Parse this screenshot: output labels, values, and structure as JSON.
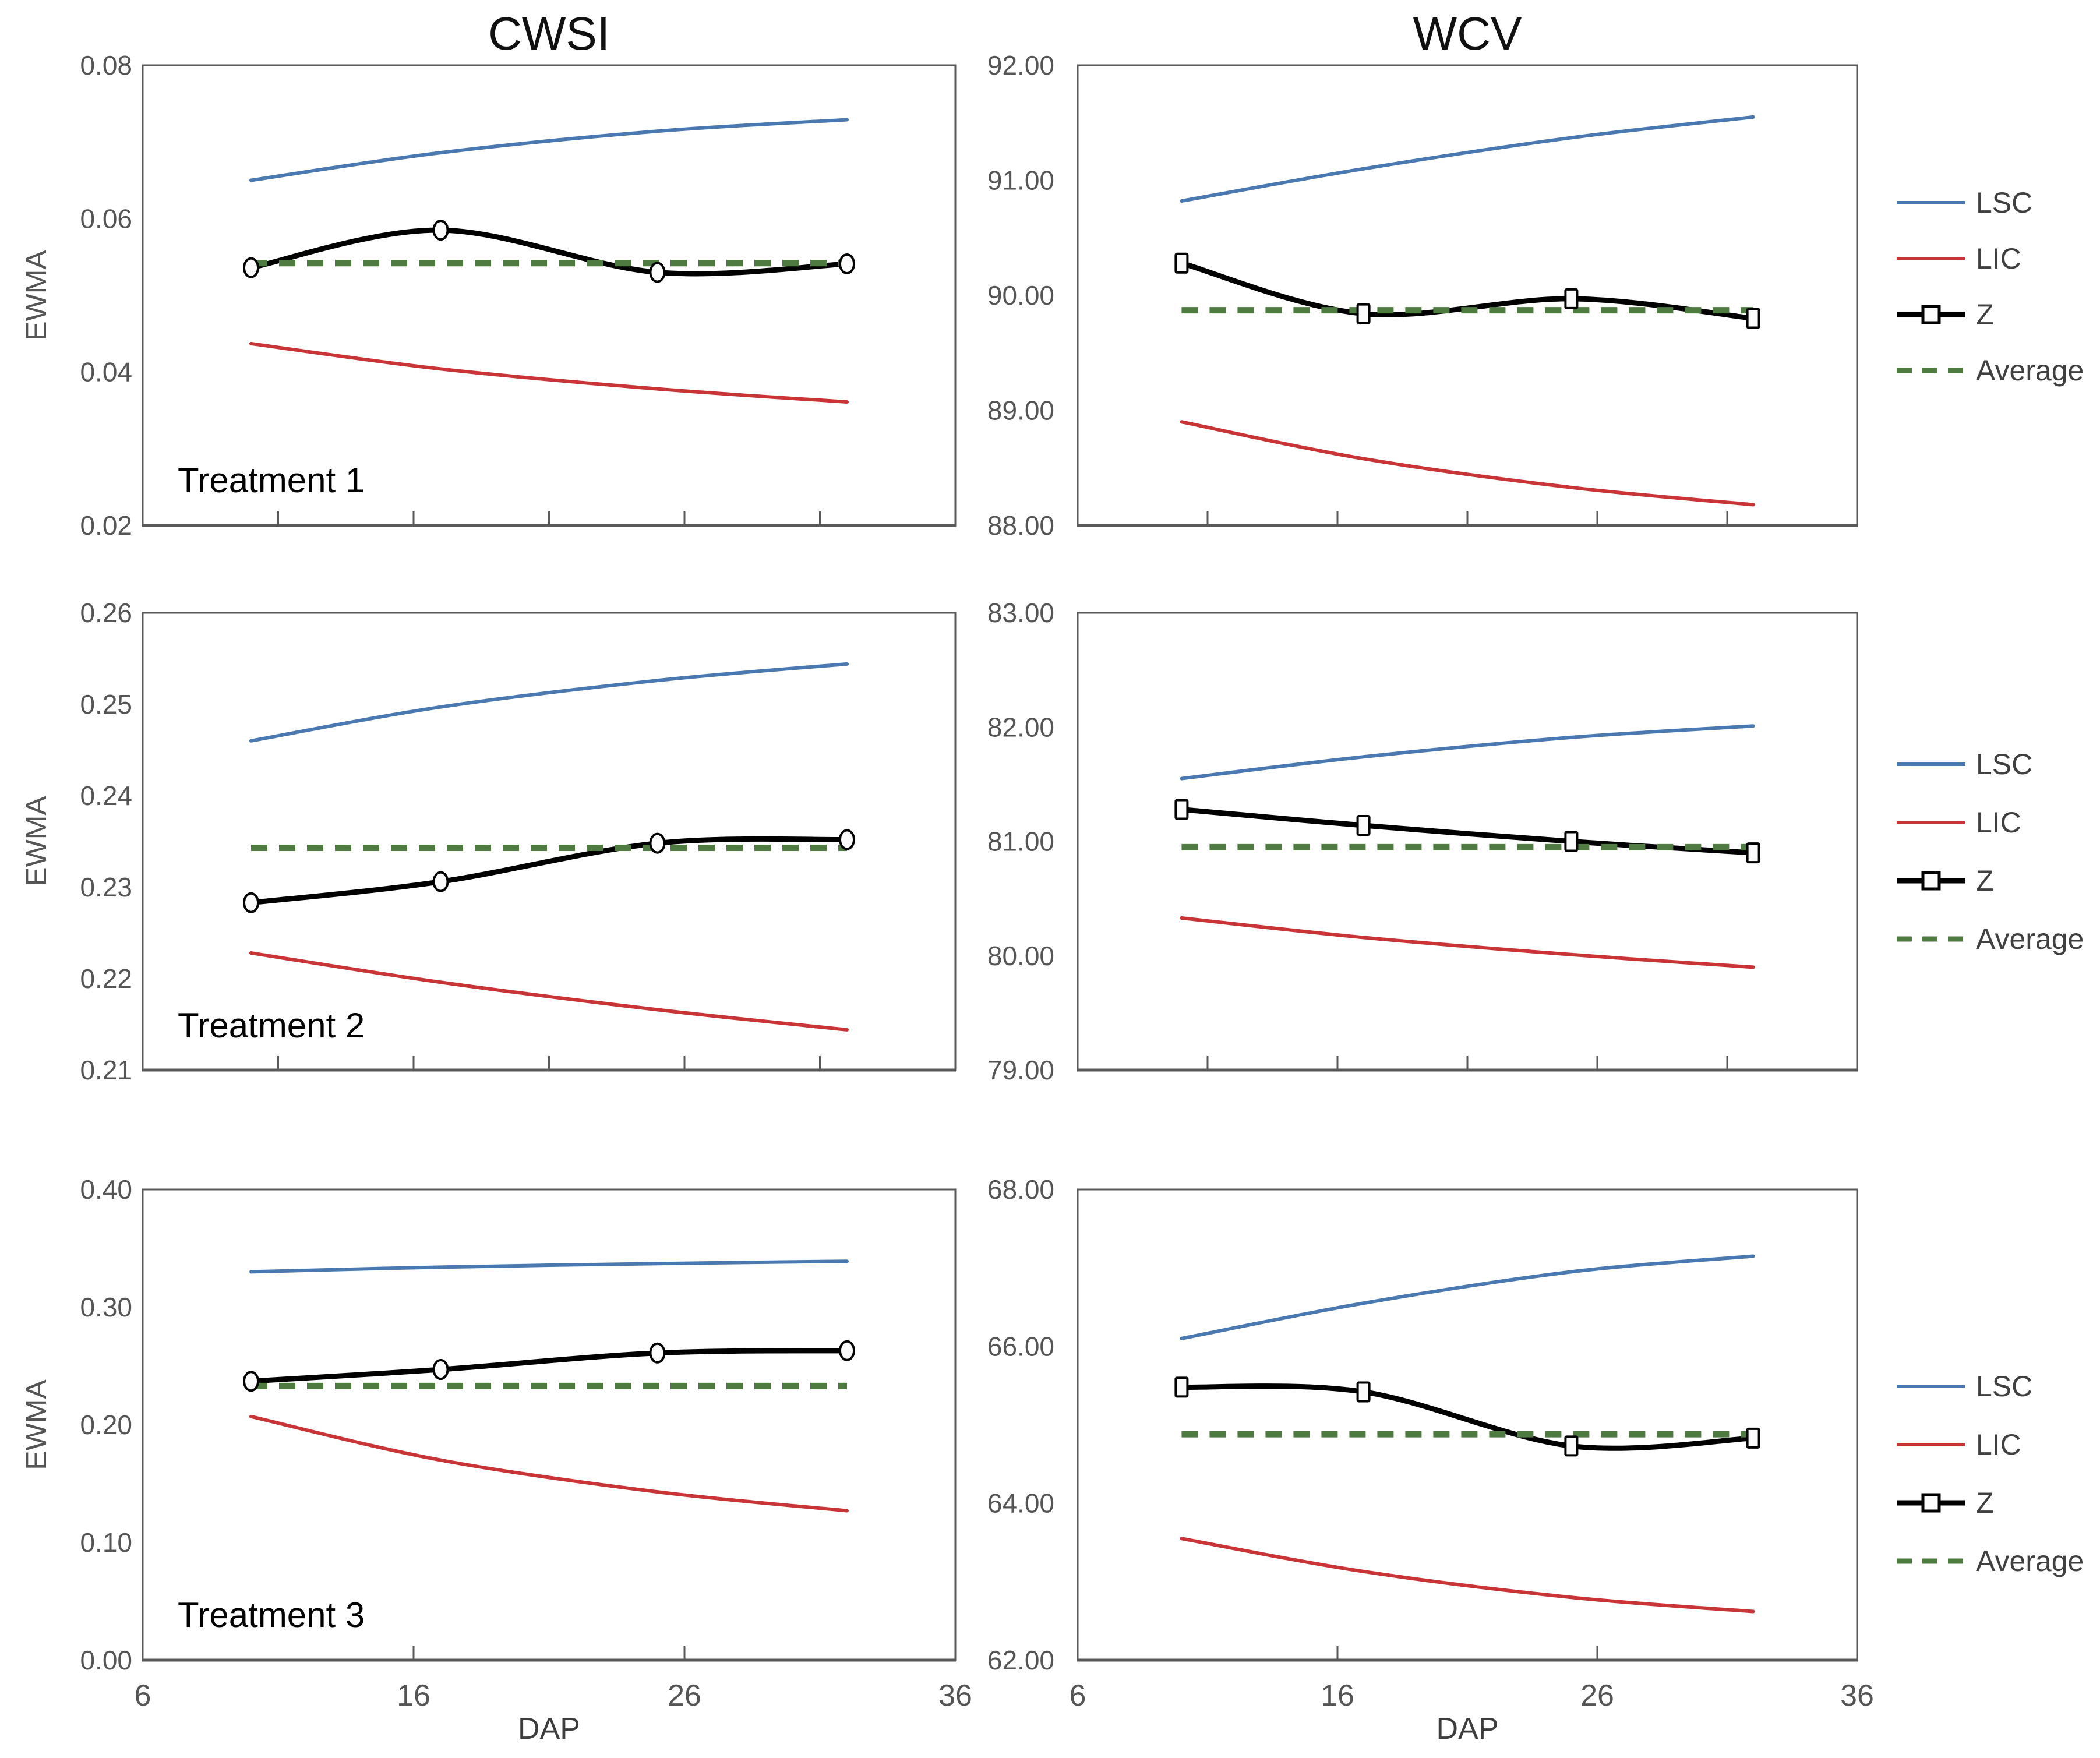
{
  "figure": {
    "columns": [
      {
        "title": "CWSI"
      },
      {
        "title": "WCV"
      }
    ],
    "ylabel": "EWMA",
    "xlabel": "DAP",
    "colors": {
      "lsc": "#4a78b0",
      "lic": "#c93536",
      "z": "#000000",
      "average": "#4e7b3f",
      "axis": "#595959",
      "tick_text": "#555555",
      "label_text": "#404040",
      "title_text": "#111111",
      "marker_fill": "#fbfbfb"
    },
    "legend": {
      "position": "right",
      "items": [
        {
          "label": "LSC",
          "series": "lsc",
          "style": "solid"
        },
        {
          "label": "LIC",
          "series": "lic",
          "style": "solid"
        },
        {
          "label": "Z",
          "series": "z",
          "style": "solid-marker"
        },
        {
          "label": "Average",
          "series": "average",
          "style": "dashed"
        }
      ]
    }
  },
  "chart_data": [
    {
      "id": "cwsi-treatment-1",
      "type": "line",
      "column": "CWSI",
      "row": 0,
      "treatment_label": "Treatment 1",
      "x": [
        10,
        17,
        25,
        32
      ],
      "xlim": [
        6,
        36
      ],
      "xticks": [
        11,
        16,
        21,
        26,
        31
      ],
      "xtick_labels": [],
      "ylim": [
        0.02,
        0.08
      ],
      "yticks": [
        {
          "v": 0.08,
          "label": "0.08"
        },
        {
          "v": 0.06,
          "label": "0.06"
        },
        {
          "v": 0.04,
          "label": "0.04"
        },
        {
          "v": 0.02,
          "label": "0.02"
        }
      ],
      "marker": "circle",
      "series": [
        {
          "name": "LSC",
          "color": "lsc",
          "values": [
            0.065,
            0.0686,
            0.0714,
            0.0729
          ]
        },
        {
          "name": "LIC",
          "color": "lic",
          "values": [
            0.0437,
            0.0404,
            0.0378,
            0.0361
          ]
        },
        {
          "name": "Z",
          "color": "z",
          "values": [
            0.0536,
            0.0585,
            0.053,
            0.0541
          ]
        }
      ],
      "average": 0.0542
    },
    {
      "id": "wcv-treatment-1",
      "type": "line",
      "column": "WCV",
      "row": 0,
      "treatment_label": null,
      "x": [
        10,
        17,
        25,
        32
      ],
      "xlim": [
        6,
        36
      ],
      "xticks": [
        11,
        16,
        21,
        26,
        31
      ],
      "xtick_labels": [],
      "ylim": [
        88,
        92
      ],
      "yticks": [
        {
          "v": 92,
          "label": "92.00"
        },
        {
          "v": 91,
          "label": "91.00"
        },
        {
          "v": 90,
          "label": "90.00"
        },
        {
          "v": 89,
          "label": "89.00"
        },
        {
          "v": 88,
          "label": "88.00"
        }
      ],
      "marker": "square",
      "series": [
        {
          "name": "LSC",
          "color": "lsc",
          "values": [
            90.82,
            91.1,
            91.37,
            91.55
          ]
        },
        {
          "name": "LIC",
          "color": "lic",
          "values": [
            88.9,
            88.58,
            88.33,
            88.18
          ]
        },
        {
          "name": "Z",
          "color": "z",
          "values": [
            90.28,
            89.84,
            89.97,
            89.8
          ]
        }
      ],
      "average": 89.87
    },
    {
      "id": "cwsi-treatment-2",
      "type": "line",
      "column": "CWSI",
      "row": 1,
      "treatment_label": "Treatment 2",
      "x": [
        10,
        17,
        25,
        32
      ],
      "xlim": [
        6,
        36
      ],
      "xticks": [
        11,
        16,
        21,
        26,
        31
      ],
      "xtick_labels": [],
      "ylim": [
        0.21,
        0.26
      ],
      "yticks": [
        {
          "v": 0.26,
          "label": "0.26"
        },
        {
          "v": 0.25,
          "label": "0.25"
        },
        {
          "v": 0.24,
          "label": "0.24"
        },
        {
          "v": 0.23,
          "label": "0.23"
        },
        {
          "v": 0.22,
          "label": "0.22"
        },
        {
          "v": 0.21,
          "label": "0.21"
        }
      ],
      "marker": "circle",
      "series": [
        {
          "name": "LSC",
          "color": "lsc",
          "values": [
            0.246,
            0.2497,
            0.2526,
            0.2544
          ]
        },
        {
          "name": "LIC",
          "color": "lic",
          "values": [
            0.2228,
            0.2196,
            0.2166,
            0.2144
          ]
        },
        {
          "name": "Z",
          "color": "z",
          "values": [
            0.2283,
            0.2306,
            0.2348,
            0.2352
          ]
        }
      ],
      "average": 0.2343
    },
    {
      "id": "wcv-treatment-2",
      "type": "line",
      "column": "WCV",
      "row": 1,
      "treatment_label": null,
      "x": [
        10,
        17,
        25,
        32
      ],
      "xlim": [
        6,
        36
      ],
      "xticks": [
        11,
        16,
        21,
        26,
        31
      ],
      "xtick_labels": [],
      "ylim": [
        79,
        83
      ],
      "yticks": [
        {
          "v": 83,
          "label": "83.00"
        },
        {
          "v": 82,
          "label": "82.00"
        },
        {
          "v": 81,
          "label": "81.00"
        },
        {
          "v": 80,
          "label": "80.00"
        },
        {
          "v": 79,
          "label": "79.00"
        }
      ],
      "marker": "square",
      "series": [
        {
          "name": "LSC",
          "color": "lsc",
          "values": [
            81.55,
            81.74,
            81.91,
            82.01
          ]
        },
        {
          "name": "LIC",
          "color": "lic",
          "values": [
            80.33,
            80.16,
            80.01,
            79.9
          ]
        },
        {
          "name": "Z",
          "color": "z",
          "values": [
            81.28,
            81.14,
            81.0,
            80.9
          ]
        }
      ],
      "average": 80.95
    },
    {
      "id": "cwsi-treatment-3",
      "type": "line",
      "column": "CWSI",
      "row": 2,
      "treatment_label": "Treatment 3",
      "x": [
        10,
        17,
        25,
        32
      ],
      "xlim": [
        6,
        36
      ],
      "xticks": [
        16,
        26
      ],
      "xtick_labels": [
        {
          "v": 6,
          "label": "6"
        },
        {
          "v": 16,
          "label": "16"
        },
        {
          "v": 26,
          "label": "26"
        },
        {
          "v": 36,
          "label": "36"
        }
      ],
      "ylim": [
        0.0,
        0.4
      ],
      "yticks": [
        {
          "v": 0.4,
          "label": "0.40"
        },
        {
          "v": 0.3,
          "label": "0.30"
        },
        {
          "v": 0.2,
          "label": "0.20"
        },
        {
          "v": 0.1,
          "label": "0.10"
        },
        {
          "v": 0.0,
          "label": "0.00"
        }
      ],
      "marker": "circle",
      "series": [
        {
          "name": "LSC",
          "color": "lsc",
          "values": [
            0.33,
            0.334,
            0.337,
            0.339
          ]
        },
        {
          "name": "LIC",
          "color": "lic",
          "values": [
            0.207,
            0.17,
            0.143,
            0.127
          ]
        },
        {
          "name": "Z",
          "color": "z",
          "values": [
            0.237,
            0.247,
            0.261,
            0.263
          ]
        }
      ],
      "average": 0.233
    },
    {
      "id": "wcv-treatment-3",
      "type": "line",
      "column": "WCV",
      "row": 2,
      "treatment_label": null,
      "x": [
        10,
        17,
        25,
        32
      ],
      "xlim": [
        6,
        36
      ],
      "xticks": [
        16,
        26
      ],
      "xtick_labels": [
        {
          "v": 6,
          "label": "6"
        },
        {
          "v": 16,
          "label": "16"
        },
        {
          "v": 26,
          "label": "26"
        },
        {
          "v": 36,
          "label": "36"
        }
      ],
      "ylim": [
        62,
        68
      ],
      "yticks": [
        {
          "v": 68,
          "label": "68.00"
        },
        {
          "v": 66,
          "label": "66.00"
        },
        {
          "v": 64,
          "label": "64.00"
        },
        {
          "v": 62,
          "label": "62.00"
        }
      ],
      "marker": "square",
      "series": [
        {
          "name": "LSC",
          "color": "lsc",
          "values": [
            66.1,
            66.55,
            66.95,
            67.15
          ]
        },
        {
          "name": "LIC",
          "color": "lic",
          "values": [
            63.55,
            63.13,
            62.8,
            62.62
          ]
        },
        {
          "name": "Z",
          "color": "z",
          "values": [
            65.48,
            65.42,
            64.73,
            64.83
          ]
        }
      ],
      "average": 64.88
    }
  ]
}
